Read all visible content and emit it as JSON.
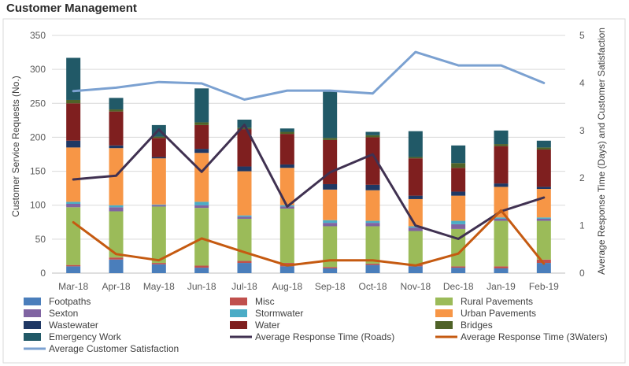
{
  "page": {
    "title": "Customer Management"
  },
  "chart_data": {
    "type": "bar",
    "stacked": true,
    "categories": [
      "Mar-18",
      "Apr-18",
      "May-18",
      "Jun-18",
      "Jul-18",
      "Aug-18",
      "Sep-18",
      "Oct-18",
      "Nov-18",
      "Dec-18",
      "Jan-19",
      "Feb-19"
    ],
    "y_left": {
      "label": "Customer Service Requests (No.)",
      "min": 0,
      "max": 350,
      "ticks": [
        "0",
        "50",
        "100",
        "150",
        "200",
        "250",
        "300",
        "350"
      ]
    },
    "y_right": {
      "label": "Average Response Time (Days) and Customer Satisfaction",
      "min": 0,
      "max": 5,
      "ticks": [
        "0",
        "1",
        "2",
        "3",
        "4",
        "5"
      ]
    },
    "grid": true,
    "legend_position": "bottom",
    "bar_series": [
      {
        "name": "Footpaths",
        "color": "#4a7ebb",
        "values": [
          10,
          20,
          13,
          8,
          15,
          10,
          7,
          12,
          10,
          8,
          7,
          15
        ]
      },
      {
        "name": "Misc",
        "color": "#c0504d",
        "values": [
          2,
          3,
          2,
          3,
          3,
          5,
          2,
          2,
          2,
          2,
          3,
          5
        ]
      },
      {
        "name": "Rural Pavements",
        "color": "#9bbb59",
        "values": [
          85,
          68,
          83,
          85,
          62,
          80,
          60,
          55,
          50,
          55,
          67,
          57
        ]
      },
      {
        "name": "Sexton",
        "color": "#8064a2",
        "values": [
          5,
          6,
          2,
          4,
          3,
          3,
          5,
          5,
          5,
          7,
          3,
          3
        ]
      },
      {
        "name": "Stormwater",
        "color": "#4bacc6",
        "values": [
          3,
          3,
          1,
          5,
          2,
          2,
          4,
          3,
          2,
          5,
          2,
          2
        ]
      },
      {
        "name": "Urban Pavements",
        "color": "#f79646",
        "values": [
          80,
          84,
          68,
          72,
          65,
          55,
          45,
          45,
          40,
          37,
          45,
          42
        ]
      },
      {
        "name": "Wastewater",
        "color": "#1f3864",
        "values": [
          10,
          4,
          2,
          6,
          7,
          5,
          8,
          8,
          5,
          6,
          5,
          3
        ]
      },
      {
        "name": "Water",
        "color": "#7f1f1f",
        "values": [
          55,
          50,
          28,
          35,
          55,
          45,
          65,
          70,
          55,
          35,
          55,
          55
        ]
      },
      {
        "name": "Bridges",
        "color": "#4f6228",
        "values": [
          5,
          3,
          2,
          4,
          2,
          3,
          3,
          3,
          2,
          7,
          3,
          3
        ]
      },
      {
        "name": "Emergency Work",
        "color": "#215967",
        "values": [
          62,
          17,
          17,
          50,
          12,
          5,
          68,
          5,
          38,
          26,
          20,
          10
        ]
      }
    ],
    "line_series": [
      {
        "name": "Average Response Time (Roads)",
        "color": "#403151",
        "axis": "right",
        "values": [
          1.97,
          2.05,
          3.02,
          2.13,
          3.12,
          1.4,
          2.12,
          2.5,
          1.0,
          0.72,
          1.3,
          1.59
        ]
      },
      {
        "name": "Average Response Time (3Waters)",
        "color": "#c55a11",
        "axis": "right",
        "values": [
          1.07,
          0.4,
          0.27,
          0.73,
          0.44,
          0.16,
          0.27,
          0.27,
          0.16,
          0.41,
          1.32,
          0.2
        ]
      },
      {
        "name": "Average Customer Satisfaction",
        "color": "#7ba1d1",
        "axis": "right",
        "values": [
          3.83,
          3.9,
          4.02,
          3.99,
          3.65,
          3.84,
          3.84,
          3.78,
          4.65,
          4.37,
          4.37,
          4.0
        ]
      }
    ],
    "legend_order": [
      "Footpaths",
      "Misc",
      "Rural Pavements",
      "Sexton",
      "Stormwater",
      "Urban Pavements",
      "Wastewater",
      "Water",
      "Bridges",
      "Emergency Work",
      "Average Response Time (Roads)",
      "Average Response Time (3Waters)",
      "Average Customer Satisfaction"
    ]
  }
}
